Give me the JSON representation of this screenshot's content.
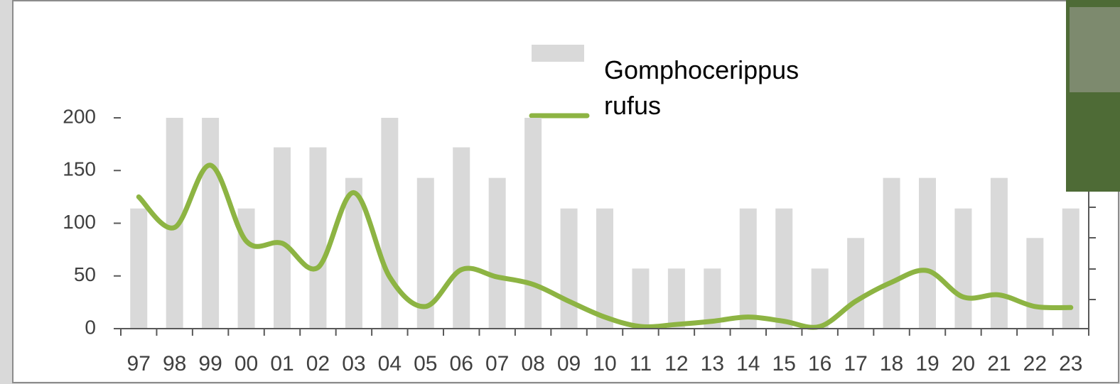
{
  "chart_data": {
    "type": "bar_line",
    "categories": [
      "97",
      "98",
      "99",
      "00",
      "01",
      "02",
      "03",
      "04",
      "05",
      "06",
      "07",
      "08",
      "09",
      "10",
      "11",
      "12",
      "13",
      "14",
      "15",
      "16",
      "17",
      "18",
      "19",
      "20",
      "21",
      "22",
      "23"
    ],
    "series": [
      {
        "type": "bar",
        "color": "#d9d9d9",
        "values": [
          114,
          200,
          200,
          114,
          172,
          172,
          143,
          200,
          143,
          172,
          143,
          200,
          114,
          114,
          57,
          57,
          57,
          114,
          114,
          57,
          86,
          143,
          143,
          114,
          143,
          86,
          114
        ]
      },
      {
        "type": "line",
        "name": "Gomphocerippus rufus",
        "color": "#8db443",
        "values": [
          125,
          96,
          155,
          83,
          81,
          58,
          129,
          49,
          21,
          56,
          49,
          42,
          26,
          11,
          2,
          4,
          7,
          11,
          7,
          2,
          26,
          44,
          55,
          30,
          32,
          21,
          20
        ]
      }
    ],
    "ylim": [
      0,
      200
    ],
    "yticks": [
      0,
      50,
      100,
      150,
      200
    ]
  }
}
